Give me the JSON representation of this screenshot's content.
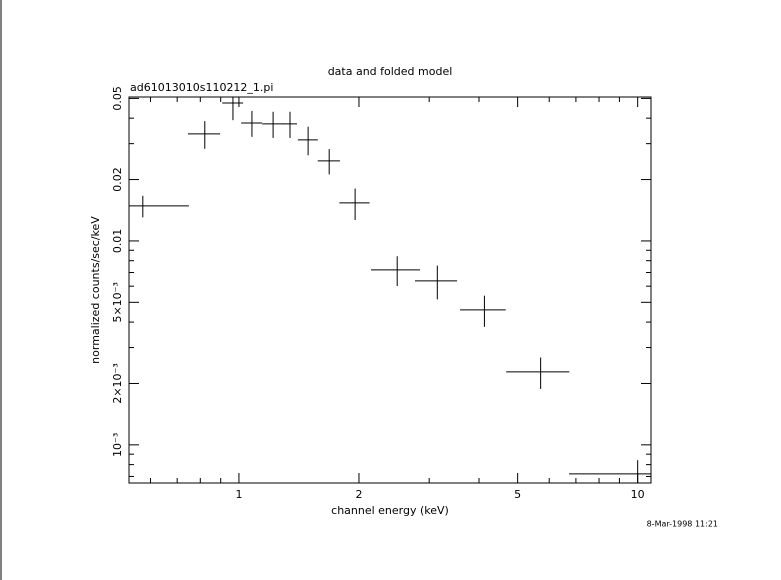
{
  "chart_data": {
    "type": "errorbar",
    "title": "data and folded model",
    "subtitle": "ad61013010s110212_1.pi",
    "xlabel": "channel energy (keV)",
    "ylabel": "normalized counts/sec/keV",
    "timestamp": "8-Mar-1998 11:21",
    "xscale": "log",
    "yscale": "log",
    "color": "#000000",
    "x": [
      0.574,
      0.821,
      0.966,
      1.078,
      1.218,
      1.343,
      1.491,
      1.684,
      1.956,
      2.494,
      3.144,
      4.127,
      5.71,
      10.0
    ],
    "values": [
      0.01485,
      0.0335,
      0.0475,
      0.0379,
      0.0375,
      0.0375,
      0.0313,
      0.0247,
      0.01536,
      0.00721,
      0.00637,
      0.00459,
      0.00228,
      0.000721
    ],
    "xerr": [
      0.175,
      0.076,
      0.058,
      0.065,
      0.074,
      0.055,
      0.086,
      0.108,
      0.17,
      0.35,
      0.38,
      0.54,
      1.03,
      3.27
    ],
    "yerr": [
      0.0018,
      0.0052,
      0.0084,
      0.0055,
      0.0055,
      0.0055,
      0.005,
      0.0035,
      0.0027,
      0.0012,
      0.0012,
      0.0008,
      0.0004,
      0.00012
    ],
    "xlim": [
      0.53,
      10.8
    ],
    "ylim": [
      0.00065,
      0.0508
    ],
    "xticks": [
      1,
      2,
      5,
      10
    ],
    "xminorticks": [
      0.6,
      0.7,
      0.8,
      0.9,
      3,
      4,
      6,
      7,
      8,
      9
    ],
    "yticks": [
      {
        "value": 0.001,
        "label": "10⁻³"
      },
      {
        "value": 0.002,
        "label": "2×10⁻³"
      },
      {
        "value": 0.005,
        "label": "5×10⁻³"
      },
      0.01,
      0.02,
      0.05
    ],
    "yminorticks": [
      0.0007,
      0.0008,
      0.0009,
      0.003,
      0.004,
      0.006,
      0.007,
      0.008,
      0.009,
      0.03,
      0.04
    ]
  }
}
